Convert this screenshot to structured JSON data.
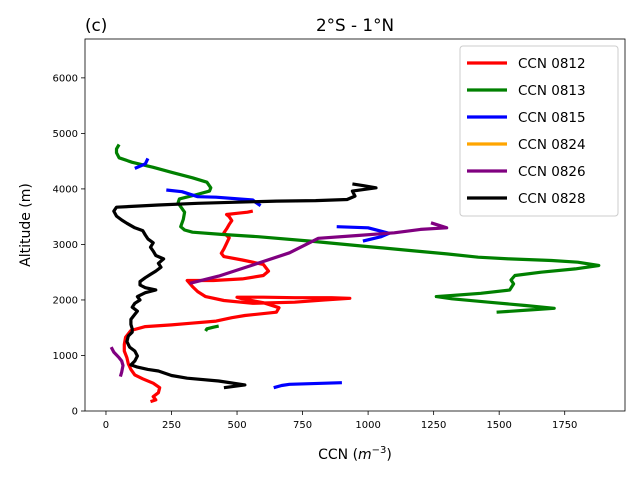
{
  "chart_data": {
    "type": "line",
    "panel_label": "(c)",
    "title": "2°S - 1°N",
    "xlabel_text": "CCN (",
    "xlabel_unit_base": "m",
    "xlabel_unit_exp": "−3",
    "xlabel_close": ")",
    "ylabel": "Altitude (m)",
    "xlim": [
      -80,
      1980
    ],
    "ylim": [
      0,
      6700
    ],
    "xticks": [
      0,
      250,
      500,
      750,
      1000,
      1250,
      1500,
      1750
    ],
    "yticks": [
      0,
      1000,
      2000,
      3000,
      4000,
      5000,
      6000
    ],
    "grid": false,
    "legend_position": "top-right",
    "series": [
      {
        "name": "CCN 0812",
        "color": "#ff0000",
        "segments": [
          [
            [
              170,
              170
            ],
            [
              190,
              200
            ],
            [
              180,
              260
            ],
            [
              200,
              330
            ],
            [
              205,
              420
            ],
            [
              180,
              500
            ],
            [
              140,
              580
            ],
            [
              110,
              650
            ],
            [
              95,
              750
            ],
            [
              85,
              850
            ],
            [
              80,
              960
            ],
            [
              70,
              1080
            ],
            [
              70,
              1200
            ],
            [
              75,
              1330
            ],
            [
              95,
              1450
            ],
            [
              150,
              1520
            ],
            [
              250,
              1550
            ],
            [
              320,
              1580
            ],
            [
              420,
              1620
            ],
            [
              480,
              1680
            ],
            [
              530,
              1720
            ],
            [
              650,
              1780
            ],
            [
              660,
              1860
            ],
            [
              600,
              1950
            ],
            [
              520,
              2020
            ],
            [
              500,
              2050
            ],
            [
              600,
              2050
            ],
            [
              720,
              2040
            ],
            [
              860,
              2040
            ],
            [
              930,
              2030
            ],
            [
              830,
              2000
            ],
            [
              720,
              1960
            ],
            [
              560,
              1940
            ],
            [
              450,
              1990
            ],
            [
              380,
              2060
            ],
            [
              350,
              2150
            ],
            [
              330,
              2240
            ],
            [
              310,
              2350
            ],
            [
              410,
              2350
            ],
            [
              520,
              2380
            ],
            [
              600,
              2440
            ],
            [
              620,
              2520
            ],
            [
              600,
              2640
            ],
            [
              520,
              2720
            ],
            [
              450,
              2780
            ],
            [
              440,
              2840
            ],
            [
              450,
              2920
            ],
            [
              460,
              3020
            ],
            [
              470,
              3120
            ],
            [
              450,
              3210
            ],
            [
              460,
              3280
            ],
            [
              470,
              3360
            ],
            [
              480,
              3430
            ],
            [
              470,
              3500
            ],
            [
              460,
              3540
            ],
            [
              500,
              3560
            ],
            [
              540,
              3580
            ],
            [
              560,
              3600
            ]
          ]
        ]
      },
      {
        "name": "CCN 0813",
        "color": "#008000",
        "segments": [
          [
            [
              380,
              1440
            ],
            [
              385,
              1480
            ],
            [
              410,
              1510
            ],
            [
              430,
              1530
            ]
          ],
          [
            [
              50,
              4800
            ],
            [
              40,
              4720
            ],
            [
              40,
              4650
            ],
            [
              50,
              4560
            ],
            [
              100,
              4480
            ],
            [
              180,
              4390
            ],
            [
              250,
              4300
            ],
            [
              330,
              4200
            ],
            [
              385,
              4120
            ],
            [
              400,
              4020
            ],
            [
              395,
              3960
            ],
            [
              340,
              3890
            ],
            [
              280,
              3820
            ],
            [
              275,
              3750
            ],
            [
              285,
              3680
            ],
            [
              300,
              3580
            ],
            [
              295,
              3450
            ],
            [
              285,
              3320
            ],
            [
              300,
              3260
            ],
            [
              330,
              3220
            ],
            [
              440,
              3180
            ],
            [
              580,
              3140
            ],
            [
              780,
              3060
            ],
            [
              980,
              2970
            ],
            [
              1160,
              2890
            ],
            [
              1300,
              2830
            ],
            [
              1420,
              2770
            ],
            [
              1540,
              2740
            ],
            [
              1700,
              2710
            ],
            [
              1800,
              2680
            ],
            [
              1880,
              2620
            ],
            [
              1790,
              2560
            ],
            [
              1660,
              2500
            ],
            [
              1560,
              2440
            ],
            [
              1545,
              2360
            ],
            [
              1555,
              2290
            ],
            [
              1540,
              2180
            ],
            [
              1430,
              2120
            ],
            [
              1320,
              2080
            ],
            [
              1260,
              2060
            ],
            [
              1320,
              2020
            ],
            [
              1460,
              1960
            ],
            [
              1600,
              1900
            ],
            [
              1710,
              1850
            ],
            [
              1620,
              1820
            ],
            [
              1490,
              1780
            ]
          ]
        ]
      },
      {
        "name": "CCN 0815",
        "color": "#0000ff",
        "segments": [
          [
            [
              640,
              420
            ],
            [
              670,
              460
            ],
            [
              700,
              480
            ],
            [
              900,
              510
            ]
          ],
          [
            [
              230,
              3980
            ],
            [
              290,
              3950
            ],
            [
              350,
              3860
            ],
            [
              420,
              3850
            ],
            [
              560,
              3800
            ],
            [
              570,
              3760
            ],
            [
              590,
              3700
            ]
          ],
          [
            [
              110,
              4370
            ],
            [
              150,
              4450
            ],
            [
              160,
              4550
            ]
          ],
          [
            [
              880,
              3320
            ],
            [
              1000,
              3300
            ],
            [
              1080,
              3200
            ],
            [
              1050,
              3140
            ],
            [
              980,
              3060
            ]
          ]
        ]
      },
      {
        "name": "CCN 0824",
        "color": "#ffa500",
        "segments": []
      },
      {
        "name": "CCN 0826",
        "color": "#800080",
        "segments": [
          [
            [
              55,
              620
            ],
            [
              60,
              700
            ],
            [
              65,
              820
            ],
            [
              60,
              900
            ],
            [
              50,
              960
            ],
            [
              30,
              1060
            ],
            [
              20,
              1150
            ]
          ],
          [
            [
              320,
              2300
            ],
            [
              430,
              2430
            ],
            [
              560,
              2630
            ],
            [
              700,
              2850
            ],
            [
              810,
              3110
            ],
            [
              960,
              3160
            ],
            [
              1100,
              3210
            ],
            [
              1200,
              3270
            ],
            [
              1300,
              3300
            ],
            [
              1240,
              3390
            ]
          ]
        ]
      },
      {
        "name": "CCN 0828",
        "color": "#000000",
        "segments": [
          [
            [
              450,
              420
            ],
            [
              530,
              470
            ],
            [
              430,
              540
            ],
            [
              310,
              590
            ],
            [
              250,
              640
            ],
            [
              200,
              720
            ],
            [
              160,
              750
            ],
            [
              120,
              790
            ],
            [
              95,
              830
            ],
            [
              110,
              900
            ],
            [
              120,
              990
            ],
            [
              110,
              1080
            ],
            [
              90,
              1150
            ],
            [
              80,
              1250
            ],
            [
              85,
              1350
            ],
            [
              100,
              1420
            ],
            [
              100,
              1480
            ],
            [
              95,
              1560
            ],
            [
              95,
              1650
            ],
            [
              110,
              1740
            ],
            [
              120,
              1800
            ],
            [
              100,
              1870
            ],
            [
              110,
              1940
            ],
            [
              130,
              2000
            ],
            [
              120,
              2060
            ],
            [
              150,
              2130
            ],
            [
              190,
              2180
            ],
            [
              150,
              2220
            ],
            [
              130,
              2270
            ],
            [
              130,
              2330
            ],
            [
              150,
              2400
            ],
            [
              170,
              2460
            ],
            [
              190,
              2520
            ],
            [
              210,
              2590
            ],
            [
              200,
              2660
            ],
            [
              220,
              2740
            ],
            [
              190,
              2800
            ],
            [
              180,
              2880
            ],
            [
              170,
              2950
            ],
            [
              180,
              3030
            ],
            [
              160,
              3100
            ],
            [
              150,
              3170
            ],
            [
              140,
              3250
            ],
            [
              110,
              3300
            ],
            [
              80,
              3380
            ],
            [
              60,
              3440
            ],
            [
              40,
              3510
            ],
            [
              30,
              3600
            ],
            [
              40,
              3670
            ],
            [
              200,
              3710
            ],
            [
              350,
              3740
            ],
            [
              500,
              3760
            ],
            [
              650,
              3780
            ],
            [
              800,
              3790
            ],
            [
              920,
              3810
            ],
            [
              950,
              3870
            ],
            [
              940,
              3960
            ],
            [
              1030,
              4020
            ],
            [
              980,
              4060
            ],
            [
              940,
              4090
            ]
          ]
        ]
      }
    ]
  }
}
